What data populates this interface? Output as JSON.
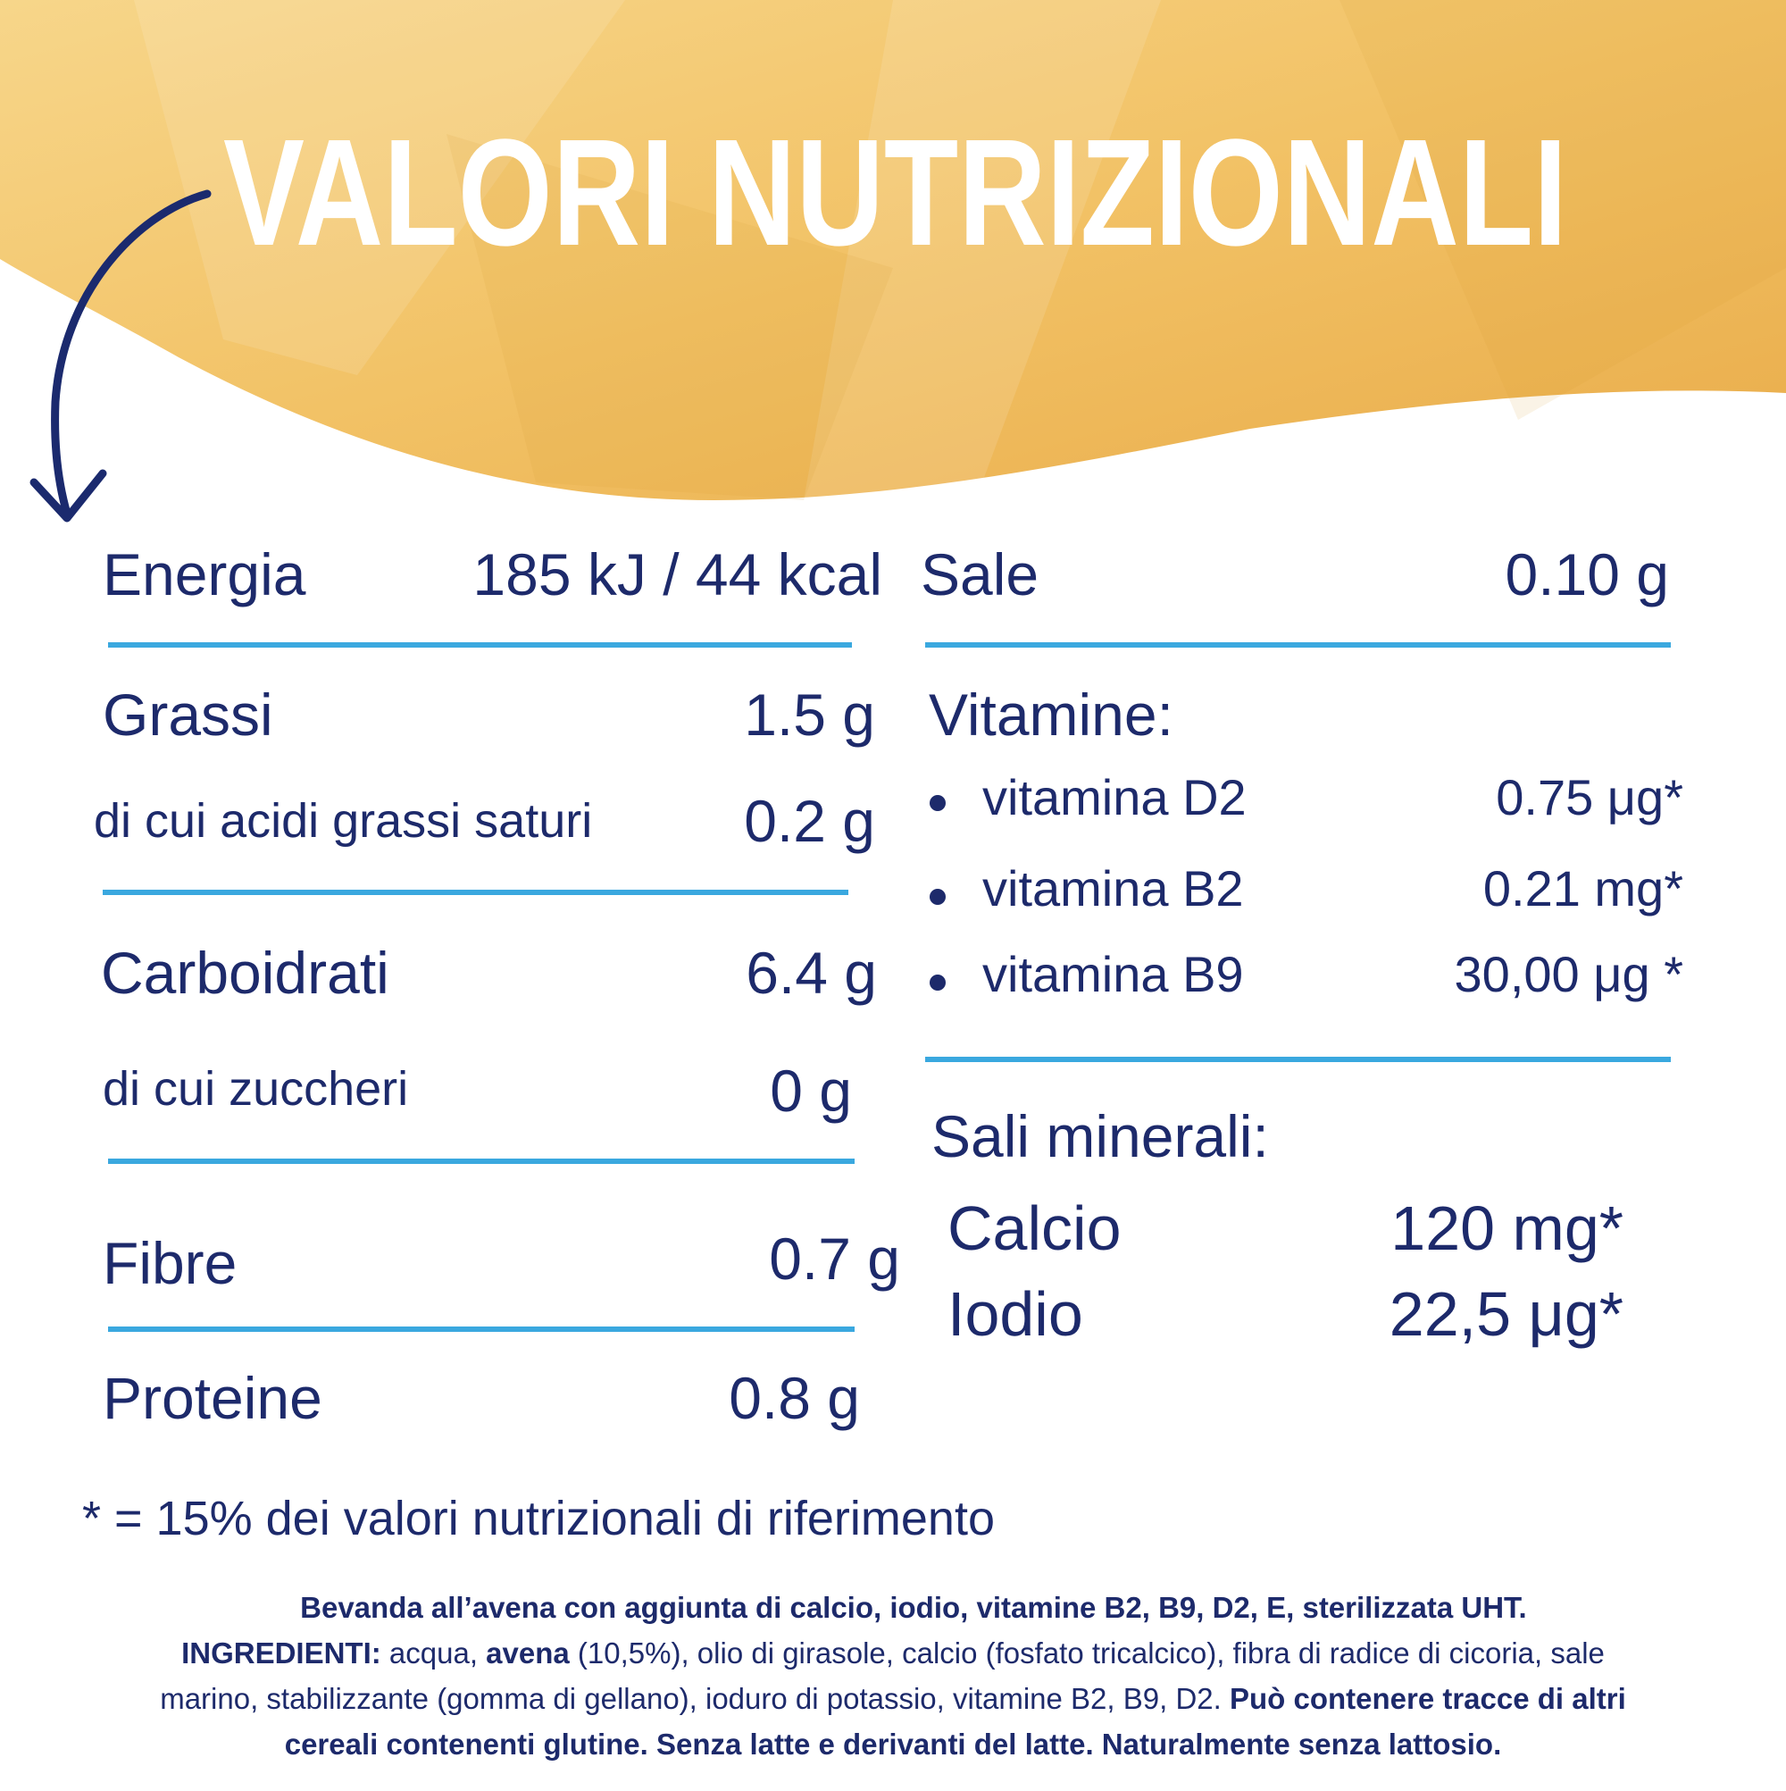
{
  "title": "VALORI NUTRIZIONALI",
  "left": [
    {
      "label": "Energia",
      "value": "185 kJ / 44 kcal"
    },
    {
      "label": "Grassi",
      "value": "1.5 g"
    },
    {
      "label": "di cui acidi grassi saturi",
      "value": "0.2 g"
    },
    {
      "label": "Carboidrati",
      "value": "6.4 g"
    },
    {
      "label": "di cui zuccheri",
      "value": "0 g"
    },
    {
      "label": "Fibre",
      "value": "0.7 g"
    },
    {
      "label": "Proteine",
      "value": "0.8 g"
    }
  ],
  "right": {
    "sale": {
      "label": "Sale",
      "value": "0.10 g"
    },
    "vitamine": {
      "heading": "Vitamine:",
      "items": [
        {
          "name": "vitamina D2",
          "value": "0.75 μg*"
        },
        {
          "name": "vitamina B2",
          "value": "0.21 mg*"
        },
        {
          "name": "vitamina B9",
          "value": "30,00 μg *"
        }
      ]
    },
    "sali_minerali": {
      "heading": "Sali minerali:",
      "items": [
        {
          "name": "Calcio",
          "value": "120 mg*"
        },
        {
          "name": "Iodio",
          "value": "22,5 μg*"
        }
      ]
    }
  },
  "footnote": "* = 15% dei valori nutrizionali di riferimento",
  "ingredients": [
    [
      "Bevanda all’avena con aggiunta di calcio, iodio, vitamine B2, B9, D2, E, sterilizzata UHT."
    ],
    [
      "INGREDIENTI:",
      " acqua, ",
      "avena",
      " (10,5%), olio di girasole, calcio (fosfato tricalcico), fibra di radice di cicoria, sale"
    ],
    [
      "marino, stabilizzante (gomma di gellano), ioduro di potassio, vitamine B2, B9, D2. ",
      "Può contenere tracce di altri"
    ],
    [
      "cereali contenenti glutine. Senza latte e derivanti del latte. Naturalmente senza lattosio."
    ]
  ]
}
